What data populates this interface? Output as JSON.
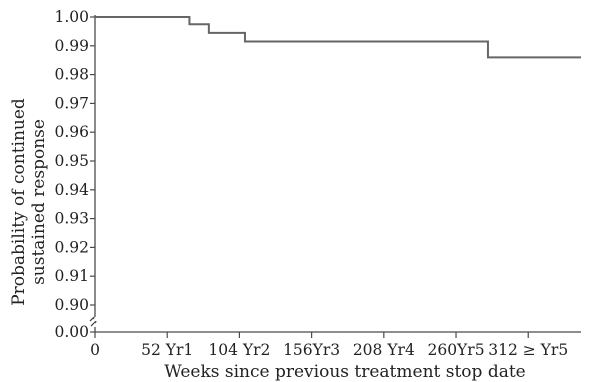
{
  "chart_data": {
    "type": "line",
    "title": "",
    "ylabel_line1": "Probability of continued",
    "ylabel_line2": "sustained response",
    "xlabel": "Weeks since previous treatment stop date",
    "x_ticks": [
      {
        "value": 0,
        "label": "0"
      },
      {
        "value": 52,
        "label": "52 Yr1"
      },
      {
        "value": 104,
        "label": "104 Yr2"
      },
      {
        "value": 156,
        "label": "156Yr3"
      },
      {
        "value": 208,
        "label": "208 Yr4"
      },
      {
        "value": 260,
        "label": "260Yr5"
      },
      {
        "value": 312,
        "label": "312 ≥ Yr5"
      }
    ],
    "y_ticks": [
      {
        "value": 1.0,
        "label": "1.00"
      },
      {
        "value": 0.99,
        "label": "0.99"
      },
      {
        "value": 0.98,
        "label": "0.98"
      },
      {
        "value": 0.97,
        "label": "0.97"
      },
      {
        "value": 0.96,
        "label": "0.96"
      },
      {
        "value": 0.95,
        "label": "0.95"
      },
      {
        "value": 0.94,
        "label": "0.94"
      },
      {
        "value": 0.93,
        "label": "0.93"
      },
      {
        "value": 0.92,
        "label": "0.92"
      },
      {
        "value": 0.91,
        "label": "0.91"
      },
      {
        "value": 0.9,
        "label": "0.90"
      },
      {
        "value": 0.0,
        "label": "0.00"
      }
    ],
    "xlim": [
      0,
      350
    ],
    "ylim_upper_segment": [
      0.9,
      1.0
    ],
    "y_axis_break": true,
    "grid": false,
    "series": [
      {
        "line_color": "#666666",
        "step": true,
        "points": [
          {
            "x": 0,
            "y": 1.0
          },
          {
            "x": 68,
            "y": 0.9975
          },
          {
            "x": 82,
            "y": 0.9945
          },
          {
            "x": 108,
            "y": 0.9915
          },
          {
            "x": 283,
            "y": 0.986
          },
          {
            "x": 350,
            "y": 0.986
          }
        ]
      }
    ]
  }
}
